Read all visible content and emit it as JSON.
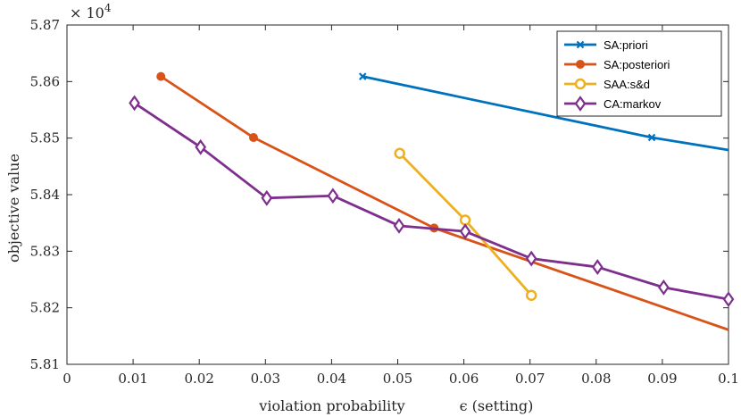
{
  "chart_data": {
    "type": "line",
    "title": "",
    "xlabel": "violation probability",
    "xlabel_extra": "ϵ (setting)",
    "ylabel": "objective value",
    "y_exponent_label": "× 10",
    "y_exponent_power": "4",
    "xlim": [
      0,
      0.1
    ],
    "ylim": [
      5.81,
      5.87
    ],
    "x_ticks": [
      0,
      0.01,
      0.02,
      0.03,
      0.04,
      0.05,
      0.06,
      0.07,
      0.08,
      0.09,
      0.1
    ],
    "x_tick_labels": [
      "0",
      "0.01",
      "0.02",
      "0.03",
      "0.04",
      "0.05",
      "0.06",
      "0.07",
      "0.08",
      "0.09",
      "0.1"
    ],
    "y_ticks": [
      5.81,
      5.82,
      5.83,
      5.84,
      5.85,
      5.86,
      5.87
    ],
    "y_tick_labels": [
      "5.81",
      "5.82",
      "5.83",
      "5.84",
      "5.85",
      "5.86",
      "5.87"
    ],
    "grid": false,
    "legend_position": "top-right",
    "series": [
      {
        "name": "SA:priori",
        "color": "#0072BD",
        "marker": "x",
        "x": [
          0.0447,
          0.0884,
          0.1
        ],
        "y": [
          5.8609,
          5.8501,
          5.8479
        ]
      },
      {
        "name": "SA:posteriori",
        "color": "#D95319",
        "marker": "dot",
        "x": [
          0.0142,
          0.0282,
          0.0555,
          0.1
        ],
        "y": [
          5.8609,
          5.8501,
          5.8341,
          5.8161
        ]
      },
      {
        "name": "SAA:s&d",
        "color": "#EDB120",
        "marker": "circle",
        "x": [
          0.0503,
          0.0602,
          0.0702
        ],
        "y": [
          5.8473,
          5.8355,
          5.8222
        ]
      },
      {
        "name": "CA:markov",
        "color": "#7E2F8E",
        "marker": "diamond",
        "x": [
          0.0102,
          0.0202,
          0.0302,
          0.0402,
          0.0502,
          0.0602,
          0.0702,
          0.0802,
          0.0902,
          0.1
        ],
        "y": [
          5.8562,
          5.8484,
          5.8394,
          5.8398,
          5.8345,
          5.8335,
          5.8287,
          5.8272,
          5.8236,
          5.8215
        ]
      }
    ]
  }
}
